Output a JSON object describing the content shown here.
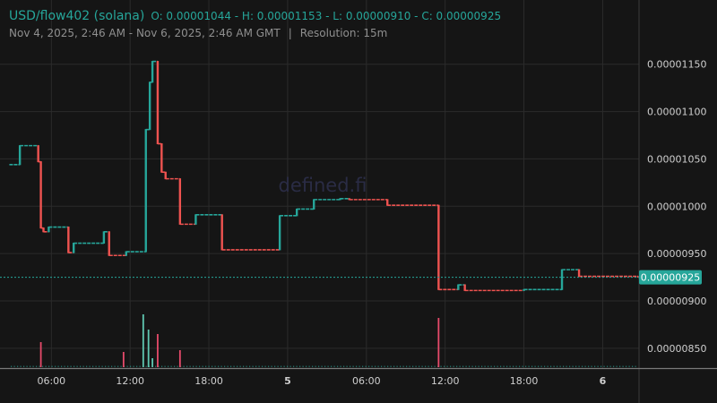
{
  "header": {
    "pair": "USD/flow402 (solana)",
    "ohlc": "O: 0.00001044 - H: 0.00001153 - L: 0.00000910 - C: 0.00000925",
    "range": "Nov 4, 2025, 2:46 AM - Nov 6, 2025, 2:46 AM GMT",
    "separator": "|",
    "resolution": "Resolution: 15m"
  },
  "watermark": "defined.fi",
  "colors": {
    "background": "#151515",
    "up": "#26a69a",
    "down": "#ef5350",
    "grid": "#2b2b2b",
    "axis_text": "#cfcfcf",
    "watermark": "#2a2c45"
  },
  "chart_data": {
    "type": "candlestick",
    "x_axis": {
      "range_hours": [
        2.77,
        50.77
      ],
      "ticks": [
        {
          "t": 6,
          "label": "06:00",
          "bold": false
        },
        {
          "t": 12,
          "label": "12:00",
          "bold": false
        },
        {
          "t": 18,
          "label": "18:00",
          "bold": false
        },
        {
          "t": 24,
          "label": "5",
          "bold": true
        },
        {
          "t": 30,
          "label": "06:00",
          "bold": false
        },
        {
          "t": 36,
          "label": "12:00",
          "bold": false
        },
        {
          "t": 42,
          "label": "18:00",
          "bold": false
        },
        {
          "t": 48,
          "label": "6",
          "bold": true
        }
      ]
    },
    "y_axis": {
      "range": [
        8.3e-06,
        1.18e-05
      ],
      "ticks": [
        "0.00001150",
        "0.00001100",
        "0.00001050",
        "0.00001000",
        "0.00000950",
        "0.00000900",
        "0.00000850"
      ],
      "last_price": 9.25e-06,
      "last_price_label": "0.00000925"
    },
    "grid": true,
    "steps": [
      {
        "t": 2.8,
        "v": 1.044e-05
      },
      {
        "t": 3.6,
        "v": 1.064e-05
      },
      {
        "t": 5.0,
        "v": 1.047e-05
      },
      {
        "t": 5.2,
        "v": 9.77e-06
      },
      {
        "t": 5.4,
        "v": 9.73e-06
      },
      {
        "t": 5.8,
        "v": 9.78e-06
      },
      {
        "t": 7.3,
        "v": 9.51e-06
      },
      {
        "t": 7.7,
        "v": 9.61e-06
      },
      {
        "t": 10.0,
        "v": 9.73e-06
      },
      {
        "t": 10.4,
        "v": 9.48e-06
      },
      {
        "t": 11.7,
        "v": 9.52e-06
      },
      {
        "t": 13.2,
        "v": 1.081e-05
      },
      {
        "t": 13.5,
        "v": 1.131e-05
      },
      {
        "t": 13.7,
        "v": 1.153e-05
      },
      {
        "t": 14.1,
        "v": 1.066e-05
      },
      {
        "t": 14.4,
        "v": 1.036e-05
      },
      {
        "t": 14.7,
        "v": 1.029e-05
      },
      {
        "t": 15.8,
        "v": 9.81e-06
      },
      {
        "t": 17.0,
        "v": 9.91e-06
      },
      {
        "t": 19.0,
        "v": 9.54e-06
      },
      {
        "t": 23.4,
        "v": 9.9e-06
      },
      {
        "t": 24.7,
        "v": 9.97e-06
      },
      {
        "t": 26.0,
        "v": 1.007e-05
      },
      {
        "t": 28.0,
        "v": 1.008e-05
      },
      {
        "t": 28.7,
        "v": 1.007e-05
      },
      {
        "t": 31.6,
        "v": 1.001e-05
      },
      {
        "t": 35.5,
        "v": 9.12e-06
      },
      {
        "t": 37.0,
        "v": 9.17e-06
      },
      {
        "t": 37.5,
        "v": 9.11e-06
      },
      {
        "t": 42.0,
        "v": 9.12e-06
      },
      {
        "t": 44.9,
        "v": 9.33e-06
      },
      {
        "t": 46.2,
        "v": 9.26e-06
      },
      {
        "t": 50.7,
        "v": 9.25e-06
      }
    ],
    "volume": [
      {
        "t": 5.2,
        "h": 0.28,
        "up": false
      },
      {
        "t": 11.5,
        "h": 0.17,
        "up": false
      },
      {
        "t": 13.0,
        "h": 0.59,
        "up": true
      },
      {
        "t": 13.4,
        "h": 0.42,
        "up": true
      },
      {
        "t": 13.7,
        "h": 0.1,
        "up": true
      },
      {
        "t": 14.1,
        "h": 0.37,
        "up": false
      },
      {
        "t": 15.8,
        "h": 0.19,
        "up": false
      },
      {
        "t": 35.5,
        "h": 0.55,
        "up": false
      }
    ]
  }
}
